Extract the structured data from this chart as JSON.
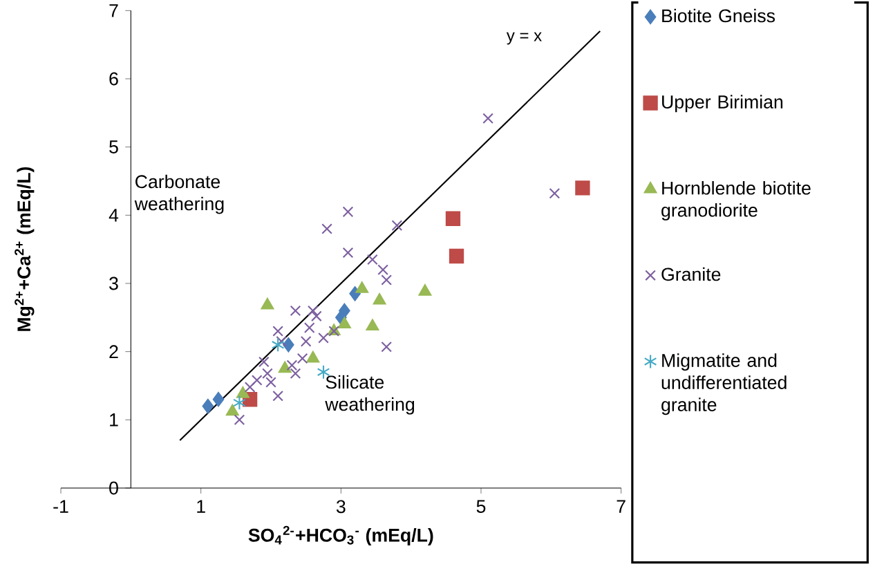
{
  "chart_data": {
    "type": "scatter",
    "xlabel": "SO$_{4}$$^{2-}$+HCO$_{3}$$^{-}$ (mEq/L)",
    "ylabel": "Mg$^{2+}$+Ca$^{2+}$ (mEq/L)",
    "xlim": [
      -1,
      7
    ],
    "xticks": [
      -1,
      1,
      3,
      5,
      7
    ],
    "ylim": [
      0,
      7
    ],
    "yticks": [
      0,
      1,
      2,
      3,
      4,
      5,
      6,
      7
    ],
    "grid": false,
    "legend": "right",
    "annotations": [
      "Carbonate weathering",
      "Silicate weathering"
    ],
    "series": [
      {
        "name": "Biotite Gneiss",
        "color": "#4a7ebb",
        "marker": "diamond",
        "x": [
          1.1,
          1.25,
          2.25,
          3.0,
          3.05,
          3.2
        ],
        "values": [
          1.2,
          1.3,
          2.1,
          2.5,
          2.6,
          2.85
        ]
      },
      {
        "name": "Upper Birimian",
        "color": "#be4b48",
        "marker": "square",
        "x": [
          1.7,
          4.6,
          4.65,
          6.45
        ],
        "values": [
          1.3,
          3.95,
          3.4,
          4.4
        ]
      },
      {
        "name": "Hornblende biotite granodiorite",
        "color": "#98b954",
        "marker": "triangle",
        "x": [
          1.45,
          1.6,
          1.95,
          2.2,
          2.6,
          2.9,
          3.05,
          3.3,
          3.45,
          3.55,
          4.2
        ],
        "values": [
          1.12,
          1.38,
          2.68,
          1.75,
          1.9,
          2.3,
          2.4,
          2.92,
          2.37,
          2.75,
          2.88
        ]
      },
      {
        "name": "Granite",
        "color": "#7d60a0",
        "marker": "cross",
        "x": [
          3.1,
          2.8,
          3.8,
          3.1,
          3.45,
          3.6,
          3.65,
          3.65,
          6.05,
          5.1,
          2.6,
          2.1,
          2.35,
          2.65,
          2.15,
          2.5,
          2.75,
          2.45,
          2.3,
          1.9,
          1.95,
          1.8,
          2.0,
          1.7,
          2.1,
          1.55,
          2.35,
          2.9,
          2.55
        ],
        "values": [
          4.05,
          3.8,
          3.85,
          3.45,
          3.35,
          3.2,
          3.05,
          2.07,
          4.32,
          5.42,
          2.6,
          2.3,
          2.6,
          2.52,
          2.15,
          2.15,
          2.2,
          1.9,
          1.8,
          1.85,
          1.68,
          1.58,
          1.55,
          1.48,
          1.35,
          1.0,
          1.68,
          2.3,
          2.35
        ]
      },
      {
        "name": "Migmatite and undifferentiated granite",
        "color": "#46aac5",
        "x": [
          1.55,
          2.1,
          2.75
        ],
        "values": [
          1.25,
          2.1,
          1.7
        ]
      },
      {
        "name": "y = x",
        "type": "line",
        "color": "#000000",
        "marker": "none",
        "x": [
          0.7,
          6.7
        ],
        "values": [
          0.7,
          6.7
        ]
      }
    ]
  }
}
